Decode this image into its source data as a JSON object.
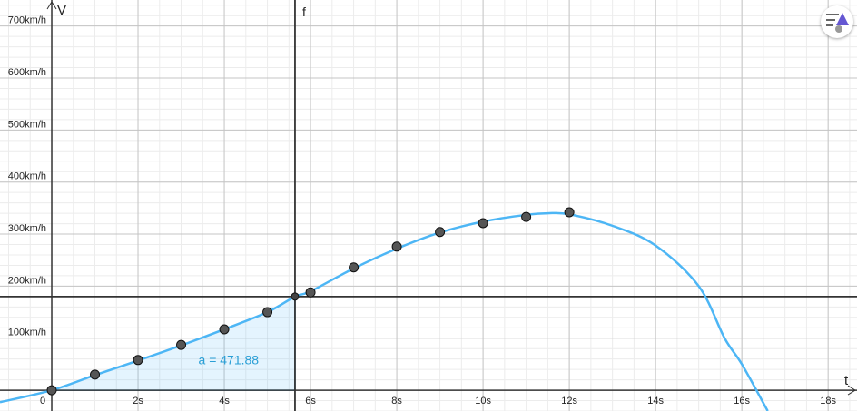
{
  "chart_data": {
    "type": "scatter",
    "xlim": [
      -1.2,
      18.67
    ],
    "ylim": [
      -40,
      750
    ],
    "xticks": [
      {
        "value": 0,
        "label": "0"
      },
      {
        "value": 2,
        "label": "2s"
      },
      {
        "value": 4,
        "label": "4s"
      },
      {
        "value": 6,
        "label": "6s"
      },
      {
        "value": 8,
        "label": "8s"
      },
      {
        "value": 10,
        "label": "10s"
      },
      {
        "value": 12,
        "label": "12s"
      },
      {
        "value": 14,
        "label": "14s"
      },
      {
        "value": 16,
        "label": "16s"
      },
      {
        "value": 18,
        "label": "18s"
      }
    ],
    "yticks": [
      {
        "value": 100,
        "label": "100km/h"
      },
      {
        "value": 200,
        "label": "200km/h"
      },
      {
        "value": 300,
        "label": "300km/h"
      },
      {
        "value": 400,
        "label": "400km/h"
      },
      {
        "value": 500,
        "label": "500km/h"
      },
      {
        "value": 600,
        "label": "600km/h"
      },
      {
        "value": 700,
        "label": "700km/h"
      }
    ],
    "x_label": "t",
    "y_label": "V",
    "grid": true,
    "points": {
      "color": "#555555",
      "x": [
        0,
        1,
        2,
        3,
        4,
        5,
        6,
        7,
        8,
        9,
        10,
        11,
        12
      ],
      "values": [
        0,
        30,
        58,
        87,
        117,
        150,
        188,
        236,
        276,
        304,
        321,
        333,
        342
      ]
    },
    "curve": {
      "color": "#4db6f5",
      "x": [
        -1.2,
        0,
        1,
        2,
        3,
        4,
        5,
        5.64,
        6,
        7,
        8,
        9,
        10,
        11,
        11.5,
        12,
        13,
        14,
        15,
        15.6,
        16,
        16.6
      ],
      "values": [
        -23,
        0,
        29,
        57,
        86,
        117,
        150,
        180,
        190,
        234,
        272,
        303,
        324,
        337,
        340,
        338,
        316,
        278,
        200,
        100,
        50,
        -40
      ]
    },
    "area": {
      "label": "a = 471.88",
      "from": 0,
      "to": 5.64
    },
    "vline": {
      "name": "f",
      "x": 5.64
    },
    "hline": {
      "y": 180
    },
    "intersection": {
      "x": 5.64,
      "y": 180
    }
  }
}
